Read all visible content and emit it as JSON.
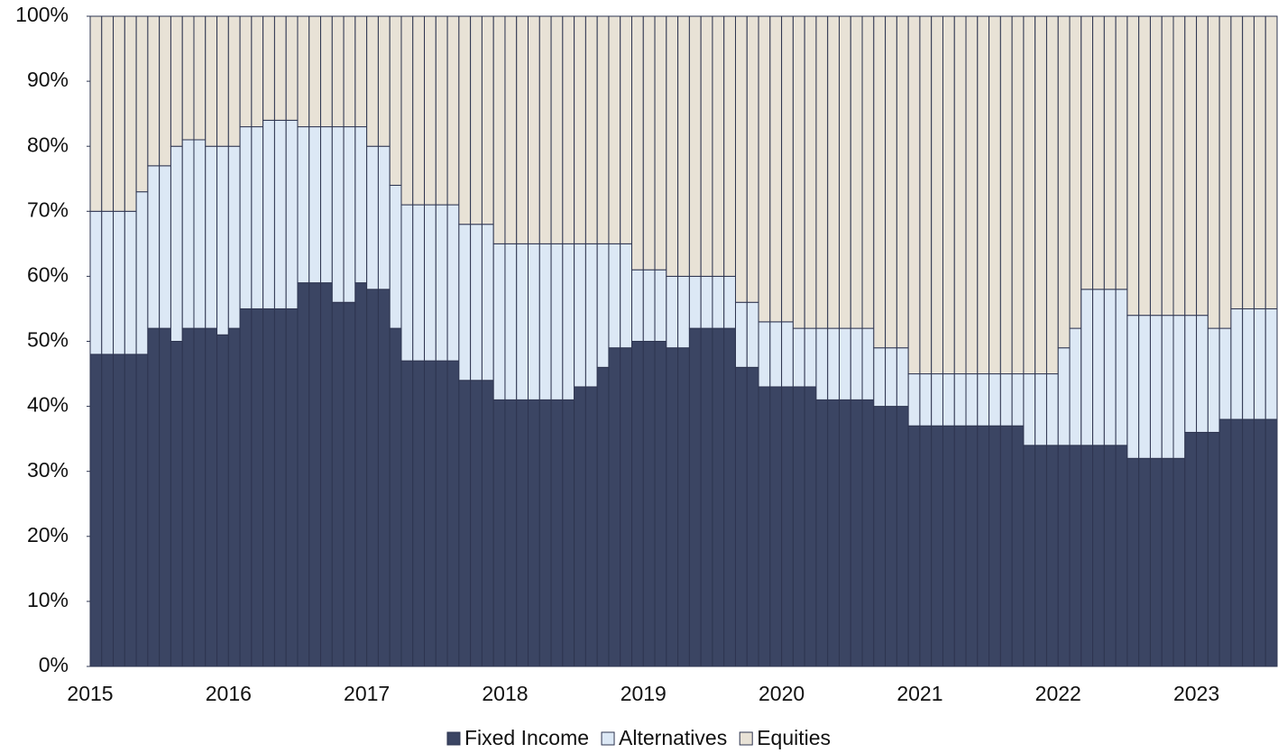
{
  "chart_data": {
    "type": "stacked_bar",
    "categories": [
      "2015",
      null,
      null,
      null,
      null,
      null,
      null,
      null,
      null,
      null,
      null,
      null,
      "2016",
      null,
      null,
      null,
      null,
      null,
      null,
      null,
      null,
      null,
      null,
      null,
      "2017",
      null,
      null,
      null,
      null,
      null,
      null,
      null,
      null,
      null,
      null,
      null,
      "2018",
      null,
      null,
      null,
      null,
      null,
      null,
      null,
      null,
      null,
      null,
      null,
      "2019",
      null,
      null,
      null,
      null,
      null,
      null,
      null,
      null,
      null,
      null,
      null,
      "2020",
      null,
      null,
      null,
      null,
      null,
      null,
      null,
      null,
      null,
      null,
      null,
      "2021",
      null,
      null,
      null,
      null,
      null,
      null,
      null,
      null,
      null,
      null,
      null,
      "2022",
      null,
      null,
      null,
      null,
      null,
      null,
      null,
      null,
      null,
      null,
      null,
      "2023",
      null,
      null,
      null,
      null,
      null,
      null
    ],
    "series": [
      {
        "name": "Fixed Income",
        "color": "#3b4563",
        "values": [
          48,
          48,
          48,
          48,
          48,
          52,
          52,
          50,
          52,
          52,
          52,
          51,
          52,
          55,
          55,
          55,
          55,
          55,
          59,
          59,
          59,
          56,
          56,
          59,
          58,
          58,
          52,
          47,
          47,
          47,
          47,
          47,
          44,
          44,
          44,
          41,
          41,
          41,
          41,
          41,
          41,
          41,
          43,
          43,
          46,
          49,
          49,
          50,
          50,
          50,
          49,
          49,
          52,
          52,
          52,
          52,
          46,
          46,
          43,
          43,
          43,
          43,
          43,
          41,
          41,
          41,
          41,
          41,
          40,
          40,
          40,
          37,
          37,
          37,
          37,
          37,
          37,
          37,
          37,
          37,
          37,
          34,
          34,
          34,
          34,
          34,
          34,
          34,
          34,
          34,
          32,
          32,
          32,
          32,
          32,
          36,
          36,
          36,
          38,
          38,
          38,
          38,
          38
        ]
      },
      {
        "name": "Alternatives",
        "color": "#dce8f5",
        "values": [
          22,
          22,
          22,
          22,
          25,
          25,
          25,
          30,
          29,
          29,
          28,
          29,
          28,
          28,
          28,
          29,
          29,
          29,
          24,
          24,
          24,
          27,
          27,
          24,
          22,
          22,
          22,
          24,
          24,
          24,
          24,
          24,
          24,
          24,
          24,
          24,
          24,
          24,
          24,
          24,
          24,
          24,
          22,
          22,
          19,
          16,
          16,
          11,
          11,
          11,
          11,
          11,
          8,
          8,
          8,
          8,
          10,
          10,
          10,
          10,
          10,
          9,
          9,
          11,
          11,
          11,
          11,
          11,
          9,
          9,
          9,
          8,
          8,
          8,
          8,
          8,
          8,
          8,
          8,
          8,
          8,
          11,
          11,
          11,
          15,
          18,
          24,
          24,
          24,
          24,
          22,
          22,
          22,
          22,
          22,
          18,
          18,
          16,
          14,
          17,
          17,
          17,
          17
        ]
      },
      {
        "name": "Equities",
        "color": "#e8e2d6",
        "values": [
          30,
          30,
          30,
          30,
          27,
          23,
          23,
          20,
          19,
          19,
          20,
          20,
          20,
          17,
          17,
          16,
          16,
          16,
          17,
          17,
          17,
          17,
          17,
          17,
          20,
          20,
          26,
          29,
          29,
          29,
          29,
          29,
          32,
          32,
          32,
          35,
          35,
          35,
          35,
          35,
          35,
          35,
          35,
          35,
          35,
          35,
          35,
          39,
          39,
          39,
          40,
          40,
          40,
          40,
          40,
          40,
          44,
          44,
          47,
          47,
          47,
          48,
          48,
          48,
          48,
          48,
          48,
          48,
          51,
          51,
          51,
          55,
          55,
          55,
          55,
          55,
          55,
          55,
          55,
          55,
          55,
          55,
          55,
          55,
          51,
          48,
          42,
          42,
          42,
          42,
          46,
          46,
          46,
          46,
          46,
          46,
          46,
          48,
          48,
          45,
          45,
          45,
          45
        ]
      }
    ],
    "ylim": [
      0,
      100
    ],
    "yticks": [
      {
        "value": 0,
        "label": "0%"
      },
      {
        "value": 10,
        "label": "10%"
      },
      {
        "value": 20,
        "label": "20%"
      },
      {
        "value": 30,
        "label": "30%"
      },
      {
        "value": 40,
        "label": "40%"
      },
      {
        "value": 50,
        "label": "50%"
      },
      {
        "value": 60,
        "label": "60%"
      },
      {
        "value": 70,
        "label": "70%"
      },
      {
        "value": 80,
        "label": "80%"
      },
      {
        "value": 90,
        "label": "90%"
      },
      {
        "value": 100,
        "label": "100%"
      }
    ],
    "legend": "bottom"
  }
}
